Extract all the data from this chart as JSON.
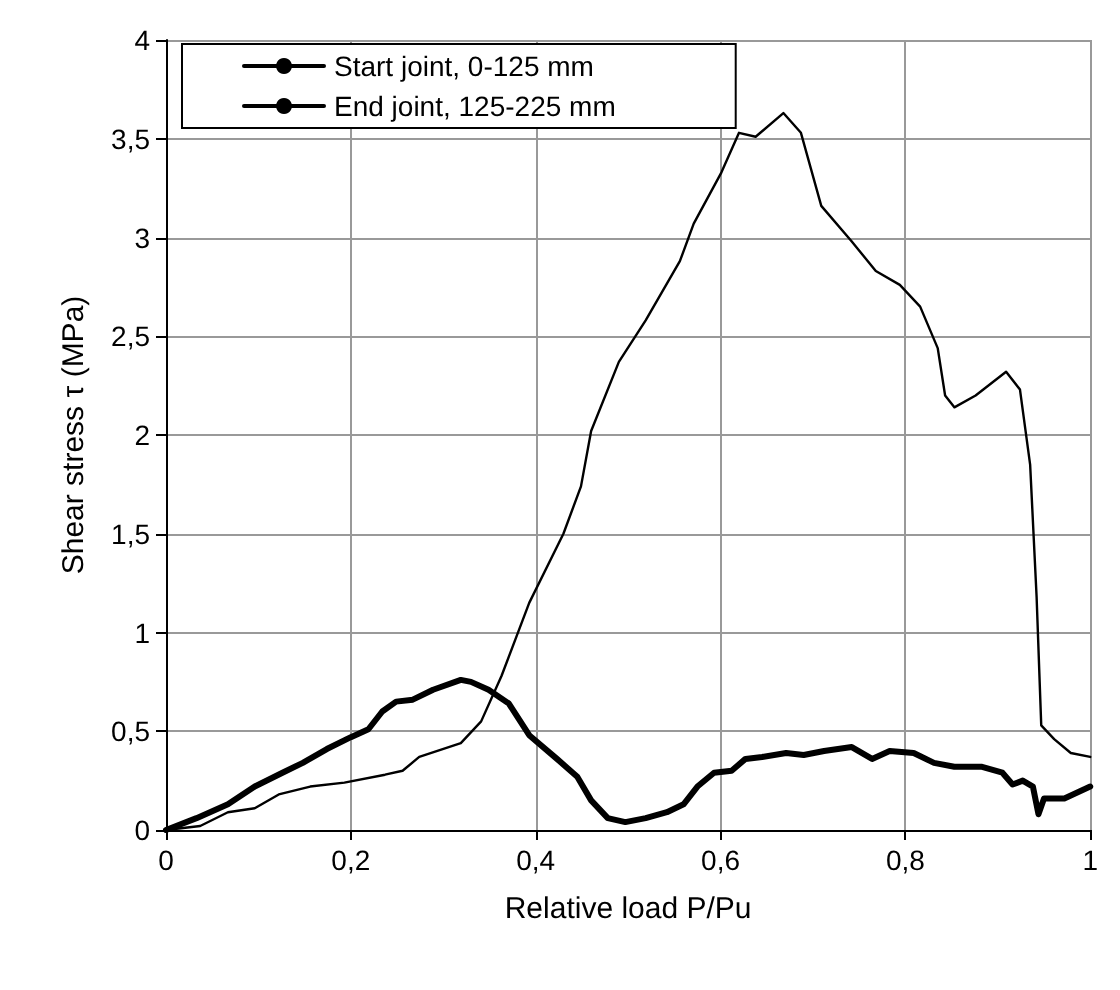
{
  "chart_data": {
    "type": "line",
    "xlabel": "Relative load P/Pu",
    "ylabel": "Shear stress τ (MPa)",
    "xlim": [
      0,
      1
    ],
    "ylim": [
      0,
      4
    ],
    "xticks": [
      0,
      {
        "value": 0.2,
        "label": "0,2"
      },
      {
        "value": 0.4,
        "label": "0,4"
      },
      {
        "value": 0.6,
        "label": "0,6"
      },
      {
        "value": 0.8,
        "label": "0,8"
      },
      1
    ],
    "yticks": [
      0,
      {
        "value": 0.5,
        "label": "0,5"
      },
      1,
      {
        "value": 1.5,
        "label": "1,5"
      },
      2,
      {
        "value": 2.5,
        "label": "2,5"
      },
      3,
      {
        "value": 3.5,
        "label": "3,5"
      },
      4
    ],
    "grid": true,
    "legend": "top left",
    "marker": "none",
    "line_style": "solid",
    "series": [
      {
        "name": "Start joint, 0-125 mm",
        "color": "#000000",
        "x": [
          0,
          0.033,
          0.067,
          0.096,
          0.126,
          0.148,
          0.174,
          0.2,
          0.219,
          0.234,
          0.249,
          0.267,
          0.289,
          0.319,
          0.33,
          0.349,
          0.371,
          0.393,
          0.423,
          0.445,
          0.46,
          0.478,
          0.497,
          0.519,
          0.542,
          0.56,
          0.575,
          0.593,
          0.612,
          0.627,
          0.645,
          0.671,
          0.69,
          0.712,
          0.742,
          0.764,
          0.783,
          0.809,
          0.831,
          0.853,
          0.883,
          0.905,
          0.916,
          0.927,
          0.938,
          0.944,
          0.95,
          0.972,
          1.0
        ],
        "values": [
          0,
          0.06,
          0.13,
          0.22,
          0.29,
          0.34,
          0.41,
          0.47,
          0.51,
          0.6,
          0.65,
          0.66,
          0.71,
          0.76,
          0.75,
          0.71,
          0.64,
          0.48,
          0.36,
          0.27,
          0.15,
          0.06,
          0.04,
          0.06,
          0.09,
          0.13,
          0.22,
          0.29,
          0.3,
          0.36,
          0.37,
          0.39,
          0.38,
          0.4,
          0.42,
          0.36,
          0.4,
          0.39,
          0.34,
          0.32,
          0.32,
          0.29,
          0.23,
          0.25,
          0.22,
          0.08,
          0.16,
          0.16,
          0.22
        ]
      },
      {
        "name": "End joint, 125-225 mm",
        "color": "#000000",
        "x": [
          0,
          0.037,
          0.067,
          0.096,
          0.122,
          0.156,
          0.193,
          0.237,
          0.256,
          0.274,
          0.319,
          0.341,
          0.363,
          0.393,
          0.43,
          0.449,
          0.46,
          0.49,
          0.519,
          0.556,
          0.571,
          0.601,
          0.62,
          0.638,
          0.668,
          0.687,
          0.709,
          0.742,
          0.768,
          0.794,
          0.816,
          0.835,
          0.843,
          0.853,
          0.876,
          0.909,
          0.924,
          0.935,
          0.942,
          0.947,
          0.961,
          0.979,
          1.0
        ],
        "values": [
          0,
          0.02,
          0.09,
          0.11,
          0.18,
          0.22,
          0.24,
          0.28,
          0.3,
          0.37,
          0.44,
          0.55,
          0.78,
          1.15,
          1.5,
          1.74,
          2.02,
          2.37,
          2.58,
          2.88,
          3.07,
          3.33,
          3.53,
          3.51,
          3.63,
          3.53,
          3.16,
          2.98,
          2.83,
          2.76,
          2.65,
          2.44,
          2.2,
          2.14,
          2.2,
          2.32,
          2.23,
          1.85,
          1.18,
          0.53,
          0.46,
          0.39,
          0.37
        ]
      }
    ]
  }
}
